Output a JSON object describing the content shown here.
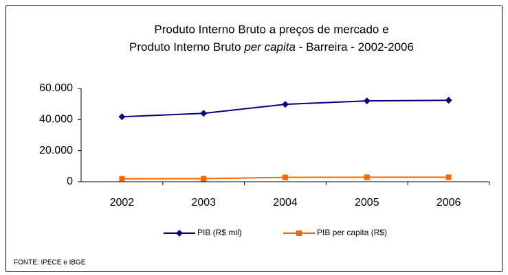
{
  "chart_data": {
    "type": "line",
    "title": "Produto Interno Bruto a preços de mercado  e",
    "subtitle": [
      "Produto Interno Bruto ",
      "per capita",
      " - Barreira - 2002-2006"
    ],
    "categories": [
      "2002",
      "2003",
      "2004",
      "2005",
      "2006"
    ],
    "series": [
      {
        "name": "PIB (R$ mil)",
        "color": "#000080",
        "marker": "diamond",
        "values": [
          41800,
          44000,
          49800,
          52000,
          52400
        ]
      },
      {
        "name": "PIB per capita (R$)",
        "color": "#FF6600",
        "marker": "square",
        "values": [
          1900,
          2000,
          2800,
          2900,
          2900
        ]
      }
    ],
    "ylim": [
      0,
      60000
    ],
    "yticks": [
      0,
      {
        "value": 20000,
        "label": "20.000"
      },
      {
        "value": 40000,
        "label": "40.000"
      },
      {
        "value": 60000,
        "label": "60.000"
      }
    ],
    "grid": false,
    "legend": "bottom",
    "source": "FONTE: IPECE e IBGE"
  }
}
